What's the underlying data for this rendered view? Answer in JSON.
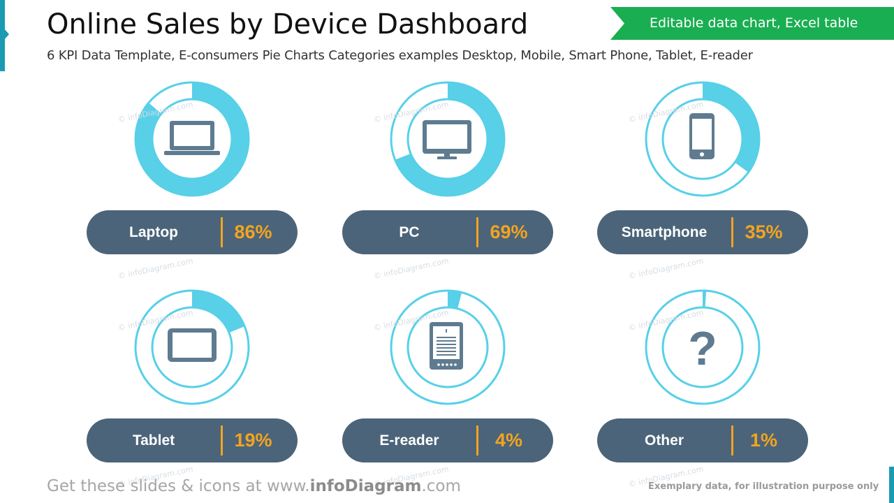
{
  "header": {
    "title": "Online Sales by Device Dashboard",
    "subtitle": "6 KPI Data Template, E-consumers Pie Charts Categories examples Desktop, Mobile, Smart Phone, Tablet, E-reader",
    "banner": "Editable data chart, Excel table"
  },
  "footer": {
    "text_before": "Get these slides & icons at www.",
    "text_brand": "infoDiagram",
    "text_after": ".com",
    "note": "Exemplary data, for illustration purpose only"
  },
  "watermark": "© infoDiagram.com",
  "colors": {
    "ring": "#57d0e8",
    "pill": "#4b6479",
    "value": "#f3a420",
    "icon": "#5e7b90",
    "banner": "#1aae52",
    "accent": "#1b9bb3"
  },
  "chart_data": {
    "type": "pie",
    "title": "Online Sales by Device Dashboard",
    "unit": "%",
    "categories": [
      "Laptop",
      "PC",
      "Smartphone",
      "Tablet",
      "E-reader",
      "Other"
    ],
    "values": [
      86,
      69,
      35,
      19,
      4,
      1
    ],
    "value_labels": [
      "86%",
      "69%",
      "35%",
      "19%",
      "4%",
      "1%"
    ],
    "icons": [
      "laptop-icon",
      "monitor-icon",
      "smartphone-icon",
      "tablet-icon",
      "ereader-icon",
      "question-icon"
    ]
  }
}
